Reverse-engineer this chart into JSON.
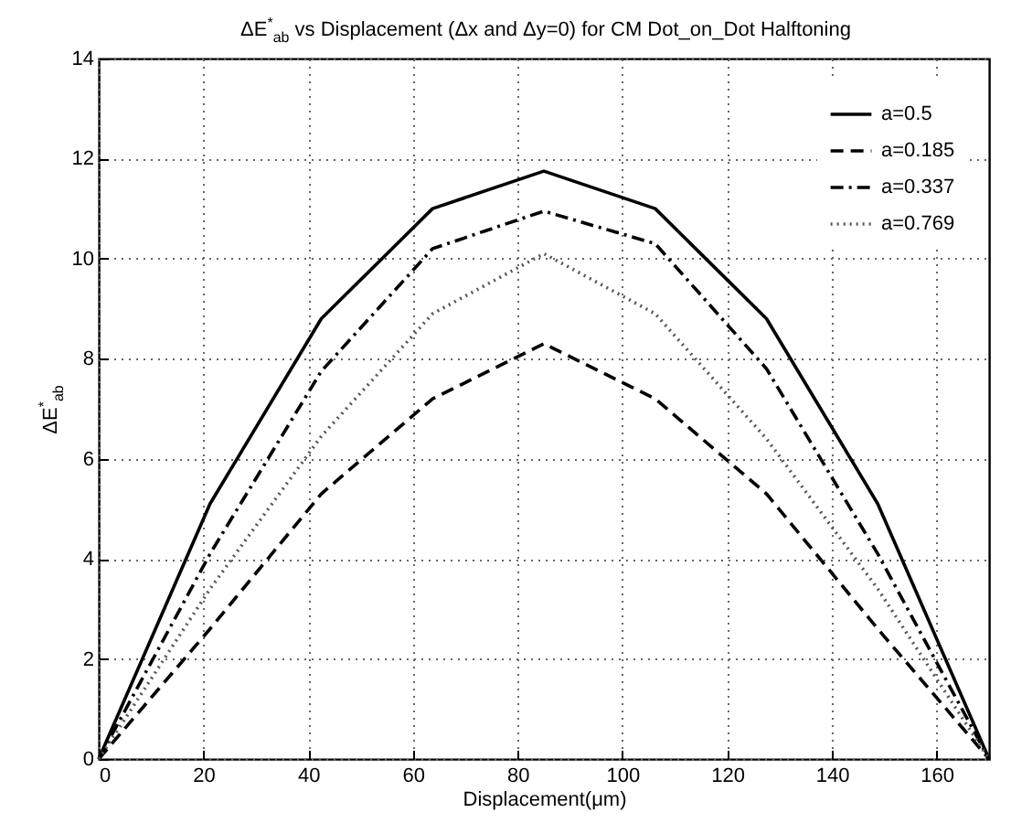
{
  "chart_data": {
    "type": "line",
    "title": "ΔE$^{*}$$_{ab}$ vs Displacement (Δx and Δy=0) for CM Dot_on_Dot Halftoning",
    "xlabel": "Displacement(μm)",
    "ylabel": "ΔE$^{*}$$_{ab}$",
    "x": [
      0,
      21.25,
      42.5,
      63.75,
      85,
      106.25,
      127.5,
      148.75,
      170
    ],
    "series": [
      {
        "name": "a=0.5",
        "color": "#000000",
        "line_style": "solid",
        "values": [
          0,
          5.1,
          8.8,
          11.0,
          11.75,
          11.0,
          8.8,
          5.1,
          0
        ]
      },
      {
        "name": "a=0.185",
        "color": "#000000",
        "line_style": "dashed",
        "values": [
          0,
          2.6,
          5.3,
          7.2,
          8.3,
          7.2,
          5.3,
          2.6,
          0
        ]
      },
      {
        "name": "a=0.337",
        "color": "#000000",
        "line_style": "dashdot",
        "values": [
          0,
          4.1,
          7.75,
          10.2,
          10.95,
          10.3,
          7.8,
          4.1,
          0
        ]
      },
      {
        "name": "a=0.769",
        "color": "#555555",
        "line_style": "dotted",
        "values": [
          0,
          3.4,
          6.45,
          8.9,
          10.1,
          8.9,
          6.4,
          3.4,
          0
        ]
      }
    ],
    "xlim": [
      0,
      170
    ],
    "xticks": [
      0,
      20,
      40,
      60,
      80,
      100,
      120,
      140,
      160
    ],
    "ylim": [
      0,
      14
    ],
    "yticks": [
      0,
      2,
      4,
      6,
      8,
      10,
      12,
      14
    ],
    "grid": true,
    "legend": "top right",
    "marker": "none"
  }
}
